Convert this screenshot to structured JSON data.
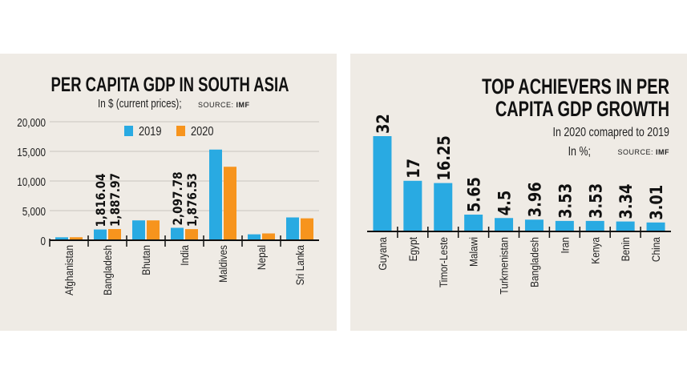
{
  "colors": {
    "background": "#efebe5",
    "series_2019": "#29aae2",
    "series_2020": "#f7941d",
    "bar": "#29aae2",
    "grid": "#c8c4be"
  },
  "chart_data": [
    {
      "type": "bar",
      "title": "PER CAPITA GDP IN SOUTH ASIA",
      "subtitle": "In $ (current prices);",
      "source_label": "SOURCE:",
      "source": "IMF",
      "ylim": [
        0,
        20000
      ],
      "yticks": [
        "0",
        "5,000",
        "10,000",
        "15,000",
        "20,000"
      ],
      "ytick_values": [
        0,
        5000,
        10000,
        15000,
        20000
      ],
      "grid": true,
      "legend_position": "top-center",
      "categories": [
        "Afghanistan",
        "Bangladesh",
        "Bhutan",
        "India",
        "Maldives",
        "Nepal",
        "Sri Lanka"
      ],
      "series": [
        {
          "name": "2019",
          "color": "#29aae2",
          "values": [
            500,
            1816.04,
            3350,
            2097.78,
            15300,
            1000,
            3850
          ],
          "labels": [
            null,
            "1,816.04",
            null,
            "2,097.78",
            null,
            null,
            null
          ]
        },
        {
          "name": "2020",
          "color": "#f7941d",
          "values": [
            510,
            1887.97,
            3350,
            1876.53,
            12400,
            1150,
            3700
          ],
          "labels": [
            null,
            "1,887.97",
            null,
            "1,876.53",
            null,
            null,
            null
          ]
        }
      ]
    },
    {
      "type": "bar",
      "title_lines": [
        "TOP ACHIEVERS IN PER",
        "CAPITA GDP GROWTH"
      ],
      "subtitle": "In 2020 comapred to 2019",
      "unit": "In %;",
      "source_label": "SOURCE:",
      "source": "IMF",
      "ylim": [
        0,
        32
      ],
      "grid": false,
      "categories": [
        "Guyana",
        "Egypt",
        "Timor-Leste",
        "Malawi",
        "Turkmenistan",
        "Bangladesh",
        "Iran",
        "Kenya",
        "Benin",
        "China"
      ],
      "values": [
        32,
        17,
        16.25,
        5.65,
        4.5,
        3.96,
        3.53,
        3.53,
        3.34,
        3.01
      ],
      "labels": [
        "32",
        "17",
        "16.25",
        "5.65",
        "4.5",
        "3.96",
        "3.53",
        "3.53",
        "3.34",
        "3.01"
      ]
    }
  ]
}
